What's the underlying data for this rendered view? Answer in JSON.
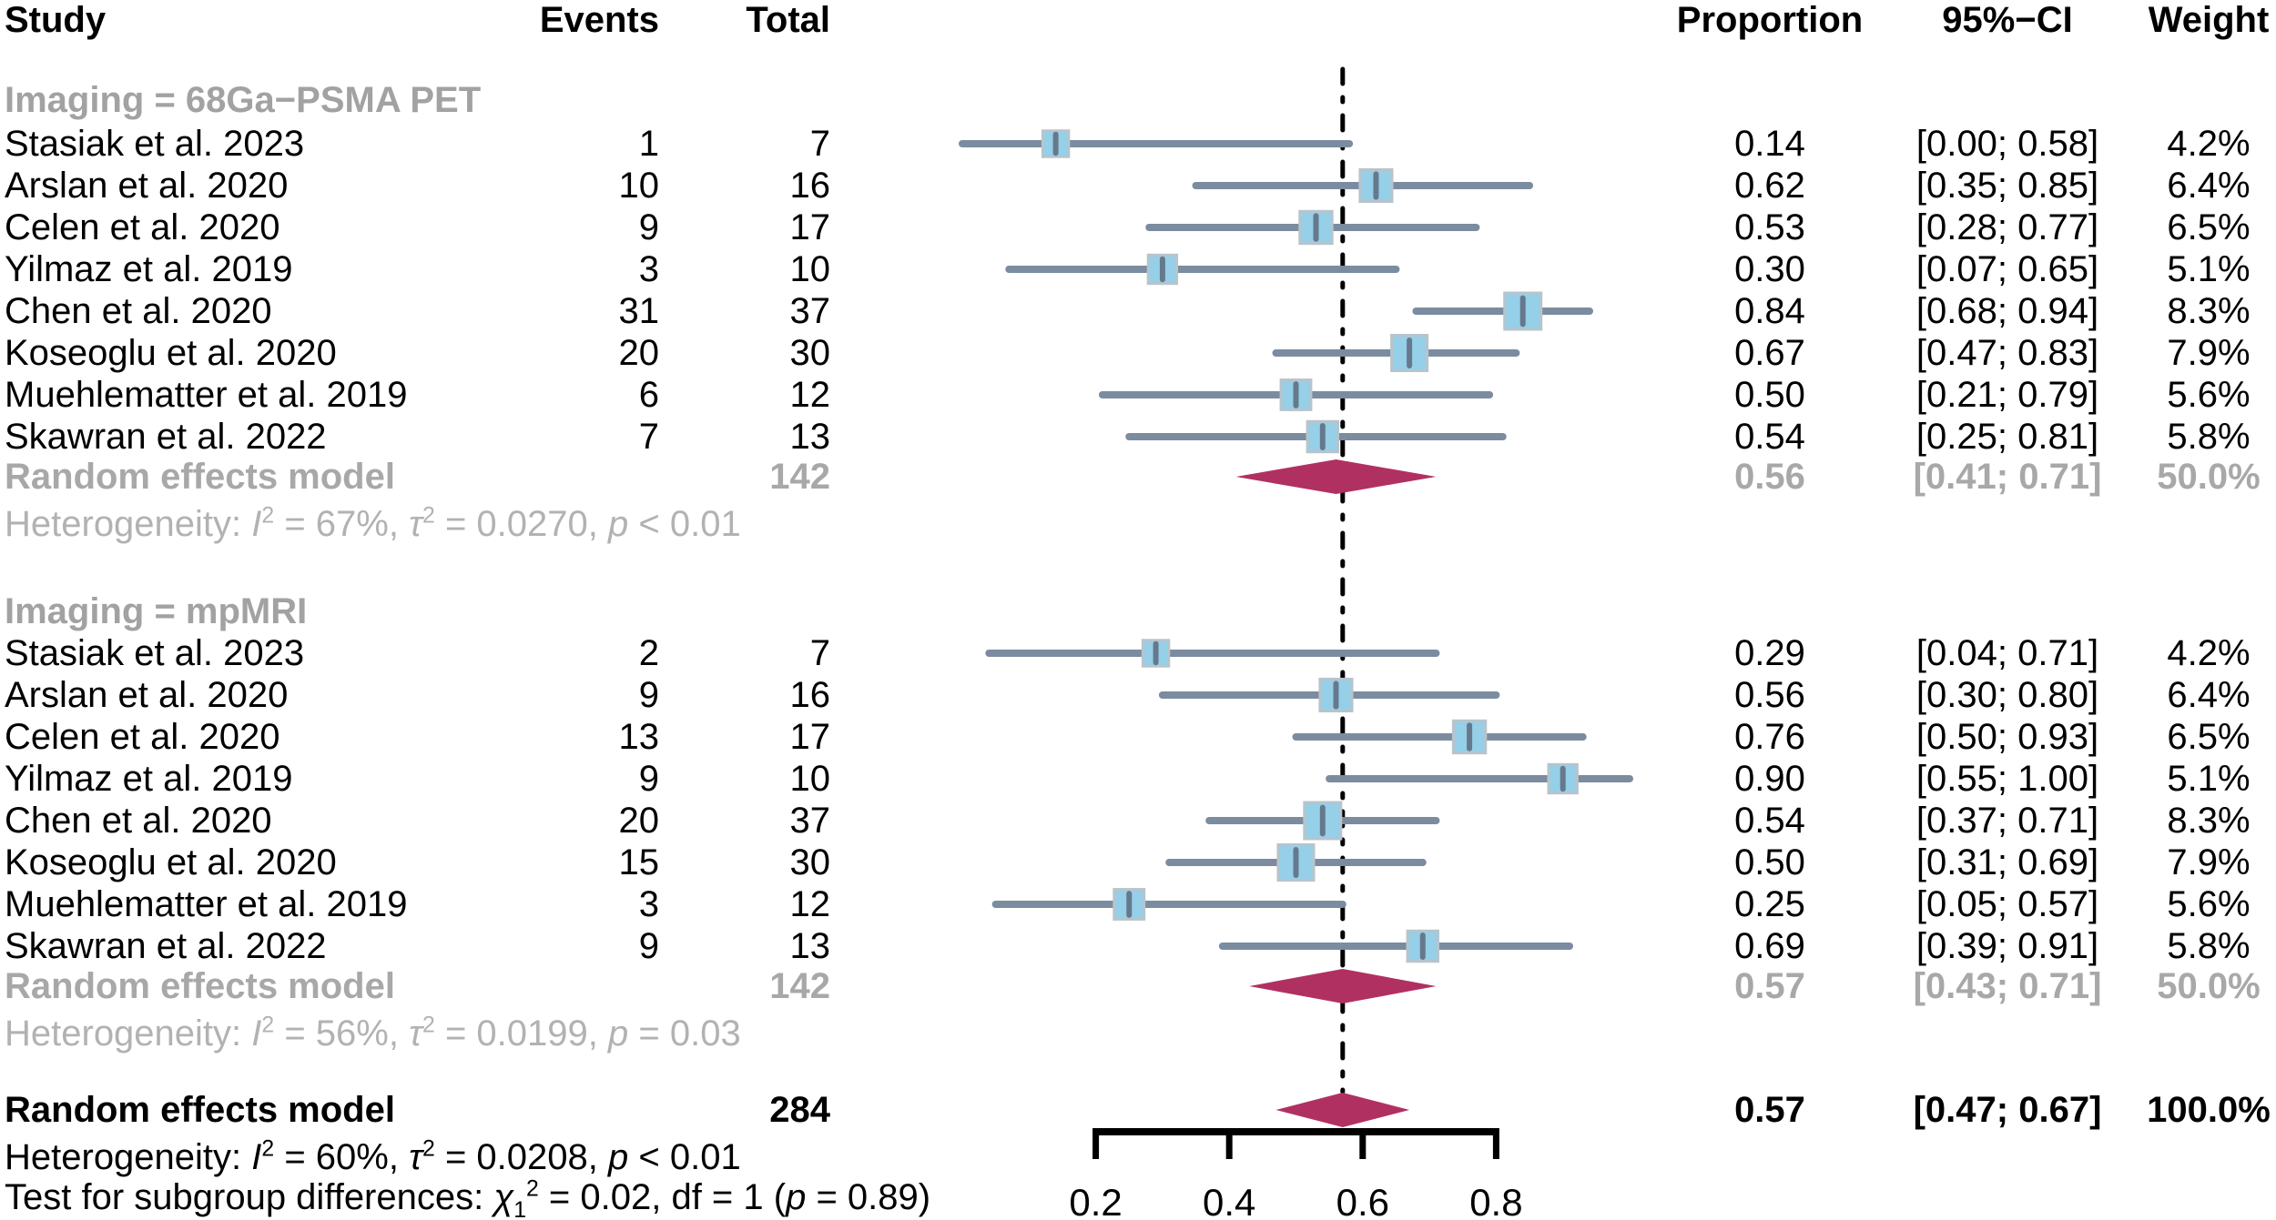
{
  "header": {
    "study": "Study",
    "events": "Events",
    "total": "Total",
    "proportion": "Proportion",
    "ci": "95%−CI",
    "weight": "Weight"
  },
  "colors": {
    "square_fill": "#95cfe8",
    "square_border": "#b8c4cc",
    "ci_line": "#7b8ca0",
    "marker": "#66798c",
    "diamond": "#b13062",
    "reference_line": "#000000",
    "axis": "#000000",
    "subgroup_label_text": "#a2a2a2",
    "summary_gray_text": "#a8a8a8",
    "heterogeneity_text": "#b2b2b2",
    "main_text": "#000000"
  },
  "chart_data": {
    "type": "scatter",
    "variant": "forest-plot",
    "title": "",
    "xlabel": "",
    "x_axis": {
      "tick_values": [
        0.2,
        0.4,
        0.6,
        0.8
      ],
      "tick_labels": [
        "0.2",
        "0.4",
        "0.6",
        "0.8"
      ],
      "plotted_range": [
        0,
        1
      ]
    },
    "reference_line_x": 0.57,
    "groups": [
      {
        "label": "Imaging = 68Ga−PSMA PET",
        "studies": [
          {
            "label": "Stasiak et al. 2023",
            "events": "1",
            "total": "7",
            "proportion": 0.14,
            "ci": [
              0.0,
              0.58
            ],
            "proportion_label": "0.14",
            "ci_label": "[0.00; 0.58]",
            "weight": 4.2,
            "weight_label": "4.2%"
          },
          {
            "label": "Arslan et al. 2020",
            "events": "10",
            "total": "16",
            "proportion": 0.62,
            "ci": [
              0.35,
              0.85
            ],
            "proportion_label": "0.62",
            "ci_label": "[0.35; 0.85]",
            "weight": 6.4,
            "weight_label": "6.4%"
          },
          {
            "label": "Celen et al. 2020",
            "events": "9",
            "total": "17",
            "proportion": 0.53,
            "ci": [
              0.28,
              0.77
            ],
            "proportion_label": "0.53",
            "ci_label": "[0.28; 0.77]",
            "weight": 6.5,
            "weight_label": "6.5%"
          },
          {
            "label": "Yilmaz et al. 2019",
            "events": "3",
            "total": "10",
            "proportion": 0.3,
            "ci": [
              0.07,
              0.65
            ],
            "proportion_label": "0.30",
            "ci_label": "[0.07; 0.65]",
            "weight": 5.1,
            "weight_label": "5.1%"
          },
          {
            "label": "Chen et al. 2020",
            "events": "31",
            "total": "37",
            "proportion": 0.84,
            "ci": [
              0.68,
              0.94
            ],
            "proportion_label": "0.84",
            "ci_label": "[0.68; 0.94]",
            "weight": 8.3,
            "weight_label": "8.3%"
          },
          {
            "label": "Koseoglu et al. 2020",
            "events": "20",
            "total": "30",
            "proportion": 0.67,
            "ci": [
              0.47,
              0.83
            ],
            "proportion_label": "0.67",
            "ci_label": "[0.47; 0.83]",
            "weight": 7.9,
            "weight_label": "7.9%"
          },
          {
            "label": "Muehlematter et al. 2019",
            "events": "6",
            "total": "12",
            "proportion": 0.5,
            "ci": [
              0.21,
              0.79
            ],
            "proportion_label": "0.50",
            "ci_label": "[0.21; 0.79]",
            "weight": 5.6,
            "weight_label": "5.6%"
          },
          {
            "label": "Skawran et al. 2022",
            "events": "7",
            "total": "13",
            "proportion": 0.54,
            "ci": [
              0.25,
              0.81
            ],
            "proportion_label": "0.54",
            "ci_label": "[0.25; 0.81]",
            "weight": 5.8,
            "weight_label": "5.8%"
          }
        ],
        "summary": {
          "label": "Random effects model",
          "total": "142",
          "proportion": 0.56,
          "ci": [
            0.41,
            0.71
          ],
          "proportion_label": "0.56",
          "ci_label": "[0.41; 0.71]",
          "weight_label": "50.0%"
        },
        "heterogeneity": "Heterogeneity: I² = 67%, τ² = 0.0270, p < 0.01"
      },
      {
        "label": "Imaging = mpMRI",
        "studies": [
          {
            "label": "Stasiak et al. 2023",
            "events": "2",
            "total": "7",
            "proportion": 0.29,
            "ci": [
              0.04,
              0.71
            ],
            "proportion_label": "0.29",
            "ci_label": "[0.04; 0.71]",
            "weight": 4.2,
            "weight_label": "4.2%"
          },
          {
            "label": "Arslan et al. 2020",
            "events": "9",
            "total": "16",
            "proportion": 0.56,
            "ci": [
              0.3,
              0.8
            ],
            "proportion_label": "0.56",
            "ci_label": "[0.30; 0.80]",
            "weight": 6.4,
            "weight_label": "6.4%"
          },
          {
            "label": "Celen et al. 2020",
            "events": "13",
            "total": "17",
            "proportion": 0.76,
            "ci": [
              0.5,
              0.93
            ],
            "proportion_label": "0.76",
            "ci_label": "[0.50; 0.93]",
            "weight": 6.5,
            "weight_label": "6.5%"
          },
          {
            "label": "Yilmaz et al. 2019",
            "events": "9",
            "total": "10",
            "proportion": 0.9,
            "ci": [
              0.55,
              1.0
            ],
            "proportion_label": "0.90",
            "ci_label": "[0.55; 1.00]",
            "weight": 5.1,
            "weight_label": "5.1%"
          },
          {
            "label": "Chen et al. 2020",
            "events": "20",
            "total": "37",
            "proportion": 0.54,
            "ci": [
              0.37,
              0.71
            ],
            "proportion_label": "0.54",
            "ci_label": "[0.37; 0.71]",
            "weight": 8.3,
            "weight_label": "8.3%"
          },
          {
            "label": "Koseoglu et al. 2020",
            "events": "15",
            "total": "30",
            "proportion": 0.5,
            "ci": [
              0.31,
              0.69
            ],
            "proportion_label": "0.50",
            "ci_label": "[0.31; 0.69]",
            "weight": 7.9,
            "weight_label": "7.9%"
          },
          {
            "label": "Muehlematter et al. 2019",
            "events": "3",
            "total": "12",
            "proportion": 0.25,
            "ci": [
              0.05,
              0.57
            ],
            "proportion_label": "0.25",
            "ci_label": "[0.05; 0.57]",
            "weight": 5.6,
            "weight_label": "5.6%"
          },
          {
            "label": "Skawran et al. 2022",
            "events": "9",
            "total": "13",
            "proportion": 0.69,
            "ci": [
              0.39,
              0.91
            ],
            "proportion_label": "0.69",
            "ci_label": "[0.39; 0.91]",
            "weight": 5.8,
            "weight_label": "5.8%"
          }
        ],
        "summary": {
          "label": "Random effects model",
          "total": "142",
          "proportion": 0.57,
          "ci": [
            0.43,
            0.71
          ],
          "proportion_label": "0.57",
          "ci_label": "[0.43; 0.71]",
          "weight_label": "50.0%"
        },
        "heterogeneity": "Heterogeneity: I² = 56%, τ² = 0.0199, p = 0.03"
      }
    ],
    "overall": {
      "label": "Random effects model",
      "total": "284",
      "proportion": 0.57,
      "ci": [
        0.47,
        0.67
      ],
      "proportion_label": "0.57",
      "ci_label": "[0.47; 0.67]",
      "weight_label": "100.0%",
      "heterogeneity": "Heterogeneity: I² = 60%, τ² = 0.0208, p < 0.01",
      "subgroup_test": "Test for subgroup differences: χ₁² = 0.02, df = 1 (p = 0.89)"
    }
  }
}
